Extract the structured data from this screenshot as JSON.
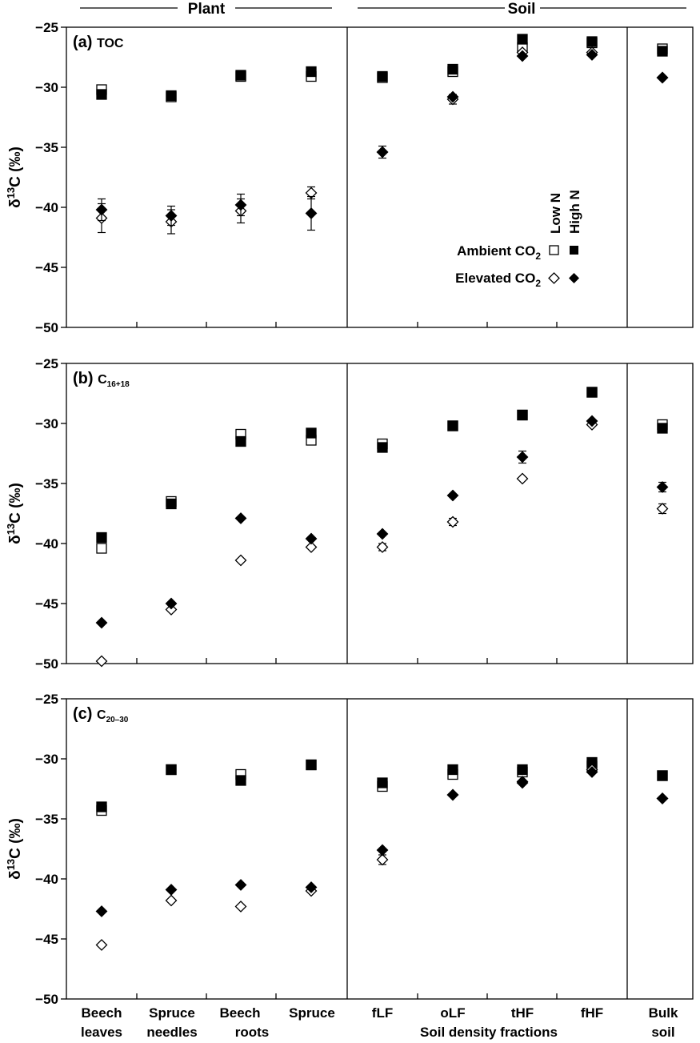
{
  "header": {
    "plant_label": "Plant",
    "soil_label": "Soil"
  },
  "legend": {
    "col_low": "Low N",
    "col_high": "High N",
    "row_ambient": "Ambient CO",
    "row_elevated": "Elevated CO",
    "subscript": "2"
  },
  "x_labels": {
    "beech_leaves": [
      "Beech",
      "leaves"
    ],
    "spruce_needles": [
      "Spruce",
      "needles"
    ],
    "beech_roots": [
      "Beech",
      "roots"
    ],
    "spruce": "Spruce",
    "flf": "fLF",
    "olf": "oLF",
    "thf": "tHF",
    "fhf": "fHF",
    "bulk": [
      "Bulk",
      "soil"
    ],
    "soil_fractions": "Soil density fractions"
  },
  "y_axis": {
    "delta": "δ",
    "sup": "13",
    "rest": "C (‰)"
  },
  "chart_data": {
    "type": "scatter",
    "categories": [
      "Beech leaves",
      "Spruce needles",
      "Beech roots",
      "Spruce",
      "fLF",
      "oLF",
      "tHF",
      "fHF",
      "Bulk soil"
    ],
    "ylim": [
      -50,
      -25
    ],
    "yticks": [
      -25,
      -30,
      -35,
      -40,
      -45,
      -50
    ],
    "ytick_labels": [
      "−25",
      "−30",
      "−35",
      "−40",
      "−45",
      "−50"
    ],
    "panels": [
      {
        "label": "(a)",
        "name": "TOC",
        "name_sub": "",
        "series": [
          {
            "name": "Ambient CO2 Low N",
            "marker": "open-square",
            "values": [
              -30.2,
              -30.8,
              -29.1,
              -29.1,
              -29.2,
              -28.7,
              -26.7,
              -26.3,
              -26.8
            ],
            "err": [
              0,
              0,
              0,
              0,
              0,
              0,
              0,
              0,
              0
            ]
          },
          {
            "name": "Ambient CO2 High N",
            "marker": "filled-square",
            "values": [
              -30.6,
              -30.7,
              -29.0,
              -28.7,
              -29.1,
              -28.5,
              -26.0,
              -26.2,
              -27.0
            ],
            "err": [
              0,
              0,
              0,
              0,
              0,
              0,
              0,
              0,
              0
            ]
          },
          {
            "name": "Elevated CO2 Low N",
            "marker": "open-diamond",
            "values": [
              -40.9,
              -41.2,
              -40.3,
              -38.8,
              -35.4,
              -31.0,
              -27.1,
              -27.1,
              -29.2
            ],
            "err": [
              1.2,
              1.0,
              1.0,
              0.5,
              0,
              0.4,
              0,
              0,
              0
            ]
          },
          {
            "name": "Elevated CO2 High N",
            "marker": "filled-diamond",
            "values": [
              -40.2,
              -40.7,
              -39.8,
              -40.5,
              -35.4,
              -30.8,
              -27.4,
              -27.3,
              -29.2
            ],
            "err": [
              0.9,
              0.8,
              0.9,
              1.4,
              0.5,
              0,
              0,
              0,
              0
            ]
          }
        ]
      },
      {
        "label": "(b)",
        "name": "C",
        "name_sub": "16+18",
        "series": [
          {
            "name": "Ambient CO2 Low N",
            "marker": "open-square",
            "values": [
              -40.4,
              -36.5,
              -30.9,
              -31.4,
              -31.7,
              -30.2,
              -29.3,
              -27.4,
              -30.1
            ],
            "err": [
              0,
              0,
              0,
              0,
              0,
              0,
              0,
              0,
              0
            ]
          },
          {
            "name": "Ambient CO2 High N",
            "marker": "filled-square",
            "values": [
              -39.5,
              -36.7,
              -31.5,
              -30.8,
              -32.0,
              -30.2,
              -29.3,
              -27.4,
              -30.4
            ],
            "err": [
              0,
              0,
              0,
              0,
              0,
              0,
              0,
              0,
              0
            ]
          },
          {
            "name": "Elevated CO2 Low N",
            "marker": "open-diamond",
            "values": [
              -49.8,
              -45.5,
              -41.4,
              -40.3,
              -40.3,
              -38.2,
              -34.6,
              -30.1,
              -37.1
            ],
            "err": [
              0,
              0,
              0,
              0,
              0.3,
              0.3,
              0,
              0,
              0.4
            ]
          },
          {
            "name": "Elevated CO2 High N",
            "marker": "filled-diamond",
            "values": [
              -46.6,
              -45.0,
              -37.9,
              -39.6,
              -39.2,
              -36.0,
              -32.8,
              -29.8,
              -35.3
            ],
            "err": [
              0,
              0,
              0,
              0,
              0,
              0,
              0.5,
              0,
              0.4
            ]
          }
        ]
      },
      {
        "label": "(c)",
        "name": "C",
        "name_sub": "20–30",
        "series": [
          {
            "name": "Ambient CO2 Low N",
            "marker": "open-square",
            "values": [
              -34.3,
              -30.9,
              -31.3,
              -30.5,
              -32.3,
              -31.3,
              -31.1,
              -30.6,
              -31.4
            ],
            "err": [
              0,
              0,
              0,
              0,
              0,
              0,
              0,
              0,
              0
            ]
          },
          {
            "name": "Ambient CO2 High N",
            "marker": "filled-square",
            "values": [
              -34.0,
              -30.9,
              -31.8,
              -30.5,
              -32.0,
              -30.9,
              -30.9,
              -30.3,
              -31.4
            ],
            "err": [
              0,
              0,
              0,
              0,
              0,
              0,
              0,
              0,
              0
            ]
          },
          {
            "name": "Elevated CO2 Low N",
            "marker": "open-diamond",
            "values": [
              -45.5,
              -41.8,
              -42.3,
              -41.0,
              -38.4,
              -33.0,
              -31.9,
              -30.9,
              -33.3
            ],
            "err": [
              0,
              0,
              0,
              0,
              0.4,
              0,
              0,
              0,
              0
            ]
          },
          {
            "name": "Elevated CO2 High N",
            "marker": "filled-diamond",
            "values": [
              -42.7,
              -40.9,
              -40.5,
              -40.7,
              -37.6,
              -33.0,
              -32.0,
              -31.1,
              -33.3
            ],
            "err": [
              0,
              0,
              0,
              0,
              0,
              0,
              0,
              0,
              0
            ]
          }
        ]
      }
    ]
  }
}
